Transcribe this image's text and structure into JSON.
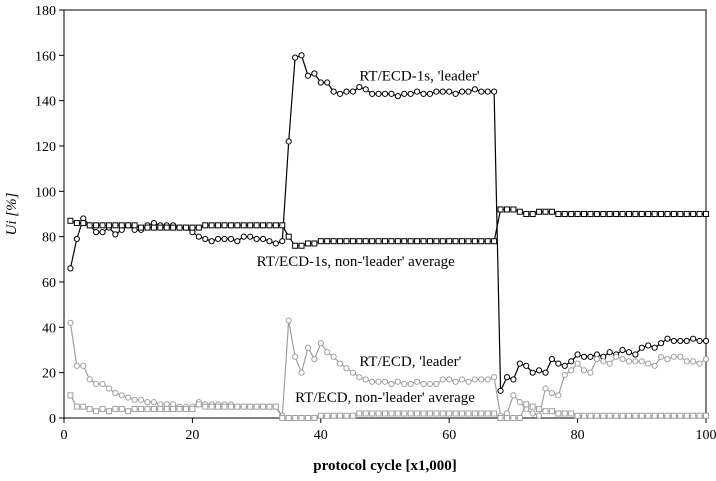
{
  "chart_data": {
    "type": "line",
    "xlabel": "protocol cycle [x1,000]",
    "ylabel": "Ui [%]",
    "xlim": [
      0,
      100
    ],
    "ylim": [
      0,
      180
    ],
    "xticks": [
      "0",
      "20",
      "40",
      "60",
      "80",
      "100"
    ],
    "yticks": [
      "0",
      "20",
      "40",
      "60",
      "80",
      "100",
      "120",
      "140",
      "160",
      "180"
    ],
    "grid": false,
    "annotations": [
      {
        "text": "RT/ECD-1s, 'leader'",
        "x": 46,
        "y": 149
      },
      {
        "text": "RT/ECD-1s, non-'leader' average",
        "x": 30,
        "y": 67
      },
      {
        "text": "RT/ECD, 'leader'",
        "x": 46,
        "y": 23
      },
      {
        "text": "RT/ECD, non-'leader' average",
        "x": 36,
        "y": 7
      }
    ],
    "series": [
      {
        "color": "#000000",
        "marker": "circle",
        "x": [
          1,
          2,
          3,
          4,
          5,
          6,
          7,
          8,
          9,
          10,
          11,
          12,
          13,
          14,
          15,
          16,
          17,
          18,
          19,
          20,
          21,
          22,
          23,
          24,
          25,
          26,
          27,
          28,
          29,
          30,
          31,
          32,
          33,
          34,
          35,
          36,
          37,
          38,
          39,
          40,
          41,
          42,
          43,
          44,
          45,
          46,
          47,
          48,
          49,
          50,
          51,
          52,
          53,
          54,
          55,
          56,
          57,
          58,
          59,
          60,
          61,
          62,
          63,
          64,
          65,
          66,
          67,
          68,
          69,
          70,
          71,
          72,
          73,
          74,
          75,
          76,
          77,
          78,
          79,
          80,
          81,
          82,
          83,
          84,
          85,
          86,
          87,
          88,
          89,
          90,
          91,
          92,
          93,
          94,
          95,
          96,
          97,
          98,
          99,
          100
        ],
        "values": [
          66,
          79,
          88,
          85,
          82,
          82,
          84,
          81,
          83,
          85,
          83,
          83,
          85,
          86,
          85,
          85,
          85,
          84,
          84,
          82,
          80,
          79,
          78,
          79,
          79,
          79,
          78,
          80,
          80,
          79,
          79,
          78,
          77,
          78,
          122,
          159,
          160,
          151,
          152,
          148,
          148,
          144,
          143,
          144,
          144,
          146,
          145,
          143,
          143,
          143,
          143,
          142,
          143,
          143,
          144,
          143,
          143,
          144,
          144,
          144,
          143,
          144,
          144,
          145,
          144,
          144,
          144,
          12,
          18,
          17,
          24,
          23,
          20,
          21,
          20,
          26,
          24,
          23,
          25,
          28,
          27,
          27,
          28,
          27,
          29,
          28,
          30,
          29,
          28,
          31,
          32,
          31,
          33,
          35,
          34,
          34,
          34,
          35,
          34,
          34
        ]
      },
      {
        "color": "#000000",
        "marker": "square",
        "x": [
          1,
          2,
          3,
          4,
          5,
          6,
          7,
          8,
          9,
          10,
          11,
          12,
          13,
          14,
          15,
          16,
          17,
          18,
          19,
          20,
          21,
          22,
          23,
          24,
          25,
          26,
          27,
          28,
          29,
          30,
          31,
          32,
          33,
          34,
          35,
          36,
          37,
          38,
          39,
          40,
          41,
          42,
          43,
          44,
          45,
          46,
          47,
          48,
          49,
          50,
          51,
          52,
          53,
          54,
          55,
          56,
          57,
          58,
          59,
          60,
          61,
          62,
          63,
          64,
          65,
          66,
          67,
          68,
          69,
          70,
          71,
          72,
          73,
          74,
          75,
          76,
          77,
          78,
          79,
          80,
          81,
          82,
          83,
          84,
          85,
          86,
          87,
          88,
          89,
          90,
          91,
          92,
          93,
          94,
          95,
          96,
          97,
          98,
          99,
          100
        ],
        "values": [
          87,
          86,
          86,
          85,
          85,
          85,
          85,
          85,
          85,
          85,
          85,
          84,
          84,
          84,
          84,
          84,
          84,
          84,
          84,
          84,
          84,
          85,
          85,
          85,
          85,
          85,
          85,
          85,
          85,
          85,
          85,
          85,
          85,
          85,
          80,
          76,
          76,
          77,
          77,
          78,
          78,
          78,
          78,
          78,
          78,
          78,
          78,
          78,
          78,
          78,
          78,
          78,
          78,
          78,
          78,
          78,
          78,
          78,
          78,
          78,
          78,
          78,
          78,
          78,
          78,
          78,
          78,
          92,
          92,
          92,
          91,
          90,
          90,
          91,
          91,
          91,
          90,
          90,
          90,
          90,
          90,
          90,
          90,
          90,
          90,
          90,
          90,
          90,
          90,
          90,
          90,
          90,
          90,
          90,
          90,
          90,
          90,
          90,
          90,
          90
        ]
      },
      {
        "color": "#a0a0a0",
        "marker": "circle",
        "x": [
          1,
          2,
          3,
          4,
          5,
          6,
          7,
          8,
          9,
          10,
          11,
          12,
          13,
          14,
          15,
          16,
          17,
          18,
          19,
          20,
          21,
          22,
          23,
          24,
          25,
          26,
          27,
          28,
          29,
          30,
          31,
          32,
          33,
          34,
          35,
          36,
          37,
          38,
          39,
          40,
          41,
          42,
          43,
          44,
          45,
          46,
          47,
          48,
          49,
          50,
          51,
          52,
          53,
          54,
          55,
          56,
          57,
          58,
          59,
          60,
          61,
          62,
          63,
          64,
          65,
          66,
          67,
          68,
          69,
          70,
          71,
          72,
          73,
          74,
          75,
          76,
          77,
          78,
          79,
          80,
          81,
          82,
          83,
          84,
          85,
          86,
          87,
          88,
          89,
          90,
          91,
          92,
          93,
          94,
          95,
          96,
          97,
          98,
          99,
          100
        ],
        "values": [
          42,
          23,
          23,
          17,
          15,
          15,
          13,
          11,
          10,
          9,
          8,
          8,
          7,
          7,
          6,
          6,
          6,
          5,
          5,
          5,
          7,
          6,
          6,
          6,
          6,
          6,
          5,
          5,
          5,
          5,
          5,
          5,
          5,
          1,
          43,
          27,
          20,
          31,
          26,
          33,
          29,
          27,
          24,
          22,
          20,
          18,
          17,
          16,
          16,
          16,
          15,
          16,
          15,
          15,
          16,
          15,
          15,
          15,
          17,
          17,
          16,
          17,
          16,
          17,
          17,
          17,
          18,
          1,
          2,
          10,
          7,
          4,
          2,
          1,
          13,
          11,
          10,
          19,
          21,
          24,
          21,
          20,
          26,
          25,
          24,
          27,
          26,
          25,
          25,
          25,
          24,
          23,
          27,
          26,
          27,
          27,
          25,
          25,
          24,
          26
        ]
      },
      {
        "color": "#a0a0a0",
        "marker": "square",
        "x": [
          1,
          2,
          3,
          4,
          5,
          6,
          7,
          8,
          9,
          10,
          11,
          12,
          13,
          14,
          15,
          16,
          17,
          18,
          19,
          20,
          21,
          22,
          23,
          24,
          25,
          26,
          27,
          28,
          29,
          30,
          31,
          32,
          33,
          34,
          35,
          36,
          37,
          38,
          39,
          40,
          41,
          42,
          43,
          44,
          45,
          46,
          47,
          48,
          49,
          50,
          51,
          52,
          53,
          54,
          55,
          56,
          57,
          58,
          59,
          60,
          61,
          62,
          63,
          64,
          65,
          66,
          67,
          68,
          69,
          70,
          71,
          72,
          73,
          74,
          75,
          76,
          77,
          78,
          79,
          80,
          81,
          82,
          83,
          84,
          85,
          86,
          87,
          88,
          89,
          90,
          91,
          92,
          93,
          94,
          95,
          96,
          97,
          98,
          99,
          100
        ],
        "values": [
          10,
          5,
          5,
          4,
          3,
          4,
          3,
          4,
          4,
          3,
          4,
          4,
          4,
          4,
          4,
          4,
          4,
          4,
          4,
          4,
          6,
          5,
          5,
          5,
          5,
          5,
          5,
          5,
          5,
          5,
          5,
          5,
          5,
          0,
          0,
          0,
          0,
          0,
          0,
          1,
          1,
          1,
          1,
          1,
          1,
          2,
          2,
          2,
          2,
          2,
          2,
          2,
          2,
          2,
          2,
          2,
          2,
          2,
          2,
          2,
          2,
          2,
          2,
          2,
          2,
          2,
          2,
          0,
          0,
          0,
          0,
          6,
          5,
          4,
          3,
          3,
          2,
          2,
          2,
          1,
          1,
          1,
          1,
          1,
          1,
          1,
          1,
          1,
          1,
          1,
          1,
          1,
          1,
          1,
          1,
          1,
          1,
          1,
          1,
          1
        ]
      }
    ]
  }
}
